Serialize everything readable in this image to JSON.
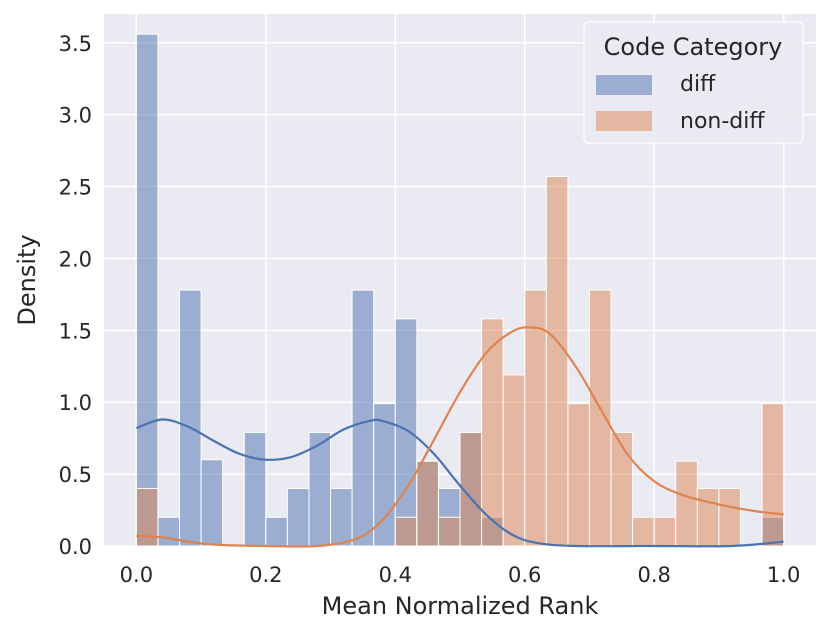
{
  "chart_data": {
    "type": "histogram",
    "xlabel": "Mean Normalized Rank",
    "ylabel": "Density",
    "xlim": [
      -0.05,
      1.05
    ],
    "ylim": [
      0,
      3.7
    ],
    "xticks": [
      "0.0",
      "0.2",
      "0.4",
      "0.6",
      "0.8",
      "1.0"
    ],
    "yticks": [
      "0.0",
      "0.5",
      "1.0",
      "1.5",
      "2.0",
      "2.5",
      "3.0",
      "3.5"
    ],
    "bin_edges": [
      0.0,
      0.0333,
      0.0667,
      0.1,
      0.1333,
      0.1667,
      0.2,
      0.2333,
      0.2667,
      0.3,
      0.3333,
      0.3667,
      0.4,
      0.4333,
      0.4667,
      0.5,
      0.5333,
      0.5667,
      0.6,
      0.6333,
      0.6667,
      0.7,
      0.7333,
      0.7667,
      0.8,
      0.8333,
      0.8667,
      0.9,
      0.9333,
      0.9667,
      1.0
    ],
    "legend": {
      "title": "Code Category",
      "position": "top-right"
    },
    "grid": true,
    "series": [
      {
        "name": "diff",
        "color": "#4C72B0",
        "values": [
          3.56,
          0.2,
          1.78,
          0.6,
          0,
          0.79,
          0.2,
          0.4,
          0.79,
          0.4,
          1.78,
          0.99,
          1.58,
          0.59,
          0.4,
          0.79,
          0.2,
          0,
          0,
          0,
          0,
          0,
          0,
          0,
          0,
          0,
          0,
          0,
          0,
          0.2
        ],
        "kde": [
          [
            0.0,
            0.82
          ],
          [
            0.04,
            0.88
          ],
          [
            0.08,
            0.83
          ],
          [
            0.12,
            0.73
          ],
          [
            0.16,
            0.64
          ],
          [
            0.2,
            0.6
          ],
          [
            0.24,
            0.62
          ],
          [
            0.28,
            0.7
          ],
          [
            0.32,
            0.81
          ],
          [
            0.36,
            0.87
          ],
          [
            0.38,
            0.87
          ],
          [
            0.42,
            0.8
          ],
          [
            0.46,
            0.64
          ],
          [
            0.5,
            0.42
          ],
          [
            0.54,
            0.22
          ],
          [
            0.58,
            0.08
          ],
          [
            0.62,
            0.02
          ],
          [
            0.68,
            0.0
          ],
          [
            0.8,
            0.0
          ],
          [
            0.92,
            0.0
          ],
          [
            1.0,
            0.03
          ]
        ]
      },
      {
        "name": "non-diff",
        "color": "#DD8452",
        "values": [
          0.4,
          0,
          0,
          0,
          0,
          0,
          0,
          0,
          0,
          0,
          0,
          0,
          0.2,
          0.59,
          0.2,
          0.79,
          1.58,
          1.19,
          1.78,
          2.57,
          0.99,
          1.78,
          0.79,
          0.2,
          0.2,
          0.59,
          0.4,
          0.4,
          0,
          0.99
        ],
        "kde": [
          [
            0.0,
            0.07
          ],
          [
            0.04,
            0.06
          ],
          [
            0.08,
            0.03
          ],
          [
            0.12,
            0.01
          ],
          [
            0.2,
            0.0
          ],
          [
            0.28,
            0.0
          ],
          [
            0.34,
            0.05
          ],
          [
            0.38,
            0.18
          ],
          [
            0.42,
            0.42
          ],
          [
            0.46,
            0.74
          ],
          [
            0.5,
            1.07
          ],
          [
            0.54,
            1.34
          ],
          [
            0.58,
            1.49
          ],
          [
            0.61,
            1.52
          ],
          [
            0.64,
            1.47
          ],
          [
            0.68,
            1.24
          ],
          [
            0.72,
            0.93
          ],
          [
            0.76,
            0.63
          ],
          [
            0.8,
            0.45
          ],
          [
            0.84,
            0.36
          ],
          [
            0.88,
            0.31
          ],
          [
            0.92,
            0.27
          ],
          [
            0.96,
            0.24
          ],
          [
            1.0,
            0.22
          ]
        ]
      }
    ]
  }
}
